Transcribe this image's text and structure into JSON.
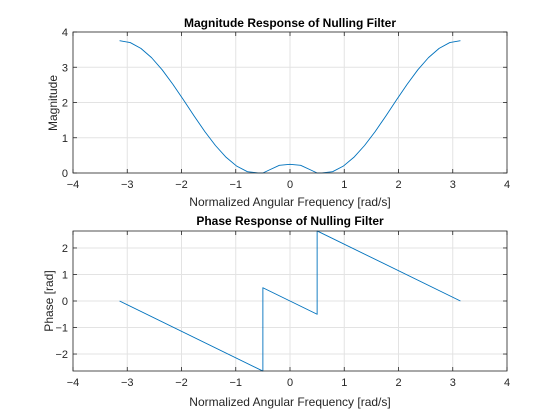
{
  "chart_data": [
    {
      "type": "line",
      "title": "Magnitude Response of Nulling Filter",
      "xlabel": "Normalized Angular Frequency [rad/s]",
      "ylabel": "Magnitude",
      "xlim": [
        -4,
        4
      ],
      "ylim": [
        0,
        4
      ],
      "xticks": [
        -4,
        -3,
        -2,
        -1,
        0,
        1,
        2,
        3,
        4
      ],
      "yticks": [
        0,
        1,
        2,
        3,
        4
      ],
      "grid": true,
      "line_color": "#0072BD",
      "series": [
        {
          "x": [
            -3.1416,
            -2.9452,
            -2.7489,
            -2.5525,
            -2.3562,
            -2.1598,
            -1.9635,
            -1.7671,
            -1.5708,
            -1.3744,
            -1.1781,
            -0.9817,
            -0.7854,
            -0.589,
            -0.5,
            -0.3927,
            -0.1963,
            0,
            0.1963,
            0.3927,
            0.5,
            0.589,
            0.7854,
            0.9817,
            1.1781,
            1.3744,
            1.5708,
            1.7671,
            1.9635,
            2.1598,
            2.3562,
            2.5525,
            2.7489,
            2.9452,
            3.1416
          ],
          "y": [
            3.755,
            3.7,
            3.536,
            3.273,
            2.927,
            2.519,
            2.074,
            1.618,
            1.178,
            0.78,
            0.446,
            0.194,
            0.037,
            0.001,
            0,
            0.078,
            0.218,
            0.245,
            0.218,
            0.078,
            0,
            0.001,
            0.037,
            0.194,
            0.446,
            0.78,
            1.178,
            1.618,
            2.074,
            2.519,
            2.927,
            3.273,
            3.536,
            3.7,
            3.755
          ]
        }
      ]
    },
    {
      "type": "line",
      "title": "Phase Response of Nulling Filter",
      "xlabel": "Normalized Angular Frequency [rad/s]",
      "ylabel": "Phase [rad]",
      "xlim": [
        -4,
        4
      ],
      "ylim": [
        -2.64,
        2.64
      ],
      "xticks": [
        -4,
        -3,
        -2,
        -1,
        0,
        1,
        2,
        3,
        4
      ],
      "yticks": [
        -2,
        -1,
        0,
        1,
        2
      ],
      "grid": true,
      "line_color": "#0072BD",
      "series": [
        {
          "x": [
            -3.1416,
            -0.5,
            -0.5,
            0.5,
            0.5,
            3.1416
          ],
          "y": [
            0,
            -2.642,
            0.5,
            -0.5,
            2.642,
            0
          ]
        }
      ]
    }
  ]
}
